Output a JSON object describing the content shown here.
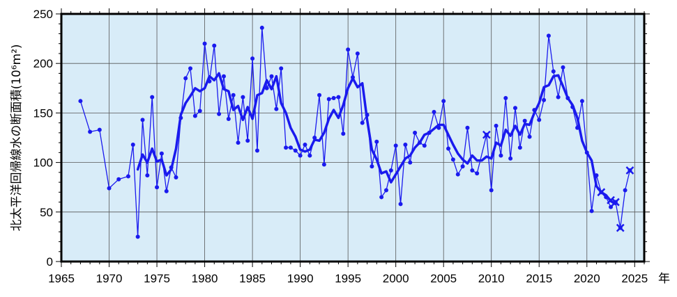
{
  "chart_data": {
    "type": "line",
    "ylabel": "北太平洋回帰線水の断面積",
    "ylabel_unit": "(10⁶m²)",
    "xlabel_unit": "年",
    "xlim": [
      1965,
      2026
    ],
    "ylim": [
      0,
      250
    ],
    "x_ticks": [
      1965,
      1970,
      1975,
      1980,
      1985,
      1990,
      1995,
      2000,
      2005,
      2010,
      2015,
      2020,
      2025
    ],
    "y_ticks": [
      0,
      50,
      100,
      150,
      200,
      250
    ],
    "grid": true,
    "background_color": "#d8ecf8",
    "line_color": "#1a1aee",
    "series": [
      {
        "style": "thin-line-with-dots",
        "points": [
          [
            1967.0,
            162
          ],
          [
            1968.0,
            131
          ],
          [
            1969.0,
            133
          ],
          [
            1970.0,
            74
          ],
          [
            1971.0,
            83
          ],
          [
            1972.0,
            86
          ],
          [
            1972.5,
            118
          ],
          [
            1973.0,
            25
          ],
          [
            1973.5,
            143
          ],
          [
            1974.0,
            87
          ],
          [
            1974.5,
            166
          ],
          [
            1975.0,
            75
          ],
          [
            1975.5,
            109
          ],
          [
            1976.0,
            71
          ],
          [
            1976.5,
            95
          ],
          [
            1977.0,
            85
          ],
          [
            1977.5,
            145
          ],
          [
            1978.0,
            185
          ],
          [
            1978.5,
            195
          ],
          [
            1979.0,
            147
          ],
          [
            1979.5,
            152
          ],
          [
            1980.0,
            220
          ],
          [
            1980.5,
            182
          ],
          [
            1981.0,
            218
          ],
          [
            1981.5,
            149
          ],
          [
            1982.0,
            187
          ],
          [
            1982.5,
            144
          ],
          [
            1983.0,
            168
          ],
          [
            1983.5,
            120
          ],
          [
            1984.0,
            166
          ],
          [
            1984.5,
            122
          ],
          [
            1985.0,
            205
          ],
          [
            1985.5,
            112
          ],
          [
            1986.0,
            236
          ],
          [
            1986.5,
            175
          ],
          [
            1987.0,
            187
          ],
          [
            1987.5,
            154
          ],
          [
            1988.0,
            195
          ],
          [
            1988.5,
            115
          ],
          [
            1989.0,
            115
          ],
          [
            1989.5,
            112
          ],
          [
            1990.0,
            107
          ],
          [
            1990.5,
            118
          ],
          [
            1991.0,
            107
          ],
          [
            1991.5,
            125
          ],
          [
            1992.0,
            168
          ],
          [
            1992.5,
            98
          ],
          [
            1993.0,
            164
          ],
          [
            1993.5,
            165
          ],
          [
            1994.0,
            166
          ],
          [
            1994.5,
            129
          ],
          [
            1995.0,
            214
          ],
          [
            1995.5,
            186
          ],
          [
            1996.0,
            210
          ],
          [
            1996.5,
            140
          ],
          [
            1997.0,
            148
          ],
          [
            1997.5,
            96
          ],
          [
            1998.0,
            121
          ],
          [
            1998.5,
            65
          ],
          [
            1999.0,
            72
          ],
          [
            1999.5,
            92
          ],
          [
            2000.0,
            117
          ],
          [
            2000.5,
            58
          ],
          [
            2001.0,
            118
          ],
          [
            2001.5,
            100
          ],
          [
            2002.0,
            130
          ],
          [
            2002.5,
            120
          ],
          [
            2003.0,
            117
          ],
          [
            2003.5,
            130
          ],
          [
            2004.0,
            151
          ],
          [
            2004.5,
            135
          ],
          [
            2005.0,
            162
          ],
          [
            2005.5,
            114
          ],
          [
            2006.0,
            103
          ],
          [
            2006.5,
            88
          ],
          [
            2007.0,
            96
          ],
          [
            2007.5,
            135
          ],
          [
            2008.0,
            92
          ],
          [
            2008.5,
            89
          ],
          [
            2009.5,
            128
          ],
          [
            2010.0,
            72
          ],
          [
            2010.5,
            137
          ],
          [
            2011.0,
            107
          ],
          [
            2011.5,
            165
          ],
          [
            2012.0,
            104
          ],
          [
            2012.5,
            155
          ],
          [
            2013.0,
            115
          ],
          [
            2013.5,
            142
          ],
          [
            2014.0,
            126
          ],
          [
            2014.5,
            153
          ],
          [
            2015.0,
            143
          ],
          [
            2015.5,
            163
          ],
          [
            2016.0,
            228
          ],
          [
            2016.5,
            192
          ],
          [
            2017.0,
            166
          ],
          [
            2017.5,
            196
          ],
          [
            2018.0,
            165
          ],
          [
            2018.5,
            156
          ],
          [
            2019.0,
            135
          ],
          [
            2019.5,
            162
          ],
          [
            2020.0,
            110
          ],
          [
            2020.5,
            51
          ],
          [
            2021.0,
            87
          ],
          [
            2021.5,
            70
          ],
          [
            2022.0,
            65
          ],
          [
            2022.5,
            55
          ],
          [
            2023.0,
            60
          ],
          [
            2023.5,
            34
          ],
          [
            2024.0,
            72
          ],
          [
            2024.5,
            92
          ]
        ]
      },
      {
        "style": "thick-smoothed-line",
        "points": [
          [
            1973.0,
            93
          ],
          [
            1973.5,
            108
          ],
          [
            1974.0,
            100
          ],
          [
            1974.5,
            114
          ],
          [
            1975.0,
            101
          ],
          [
            1975.5,
            103
          ],
          [
            1976.0,
            87
          ],
          [
            1976.5,
            93
          ],
          [
            1977.0,
            114
          ],
          [
            1977.5,
            148
          ],
          [
            1978.0,
            160
          ],
          [
            1978.5,
            167
          ],
          [
            1979.0,
            175
          ],
          [
            1979.5,
            172
          ],
          [
            1980.0,
            175
          ],
          [
            1980.5,
            187
          ],
          [
            1981.0,
            183
          ],
          [
            1981.5,
            190
          ],
          [
            1982.0,
            174
          ],
          [
            1982.5,
            172
          ],
          [
            1983.0,
            153
          ],
          [
            1983.5,
            157
          ],
          [
            1984.0,
            143
          ],
          [
            1984.5,
            156
          ],
          [
            1985.0,
            144
          ],
          [
            1985.5,
            168
          ],
          [
            1986.0,
            170
          ],
          [
            1986.5,
            183
          ],
          [
            1987.0,
            174
          ],
          [
            1987.5,
            187
          ],
          [
            1988.0,
            160
          ],
          [
            1988.5,
            150
          ],
          [
            1989.0,
            135
          ],
          [
            1989.5,
            126
          ],
          [
            1990.0,
            113
          ],
          [
            1990.5,
            111
          ],
          [
            1991.0,
            113
          ],
          [
            1991.5,
            123
          ],
          [
            1992.0,
            122
          ],
          [
            1992.5,
            130
          ],
          [
            1993.0,
            144
          ],
          [
            1993.5,
            153
          ],
          [
            1994.0,
            145
          ],
          [
            1994.5,
            158
          ],
          [
            1995.0,
            175
          ],
          [
            1995.5,
            185
          ],
          [
            1996.0,
            176
          ],
          [
            1996.5,
            180
          ],
          [
            1997.0,
            143
          ],
          [
            1997.5,
            113
          ],
          [
            1998.0,
            103
          ],
          [
            1998.5,
            89
          ],
          [
            1999.0,
            91
          ],
          [
            1999.5,
            80
          ],
          [
            2000.0,
            88
          ],
          [
            2000.5,
            96
          ],
          [
            2001.0,
            104
          ],
          [
            2001.5,
            107
          ],
          [
            2002.0,
            115
          ],
          [
            2002.5,
            120
          ],
          [
            2003.0,
            128
          ],
          [
            2003.5,
            130
          ],
          [
            2004.0,
            134
          ],
          [
            2004.5,
            138
          ],
          [
            2005.0,
            138
          ],
          [
            2005.5,
            128
          ],
          [
            2006.0,
            118
          ],
          [
            2006.5,
            109
          ],
          [
            2007.0,
            103
          ],
          [
            2007.5,
            99
          ],
          [
            2008.0,
            107
          ],
          [
            2008.5,
            102
          ],
          [
            2009.0,
            102
          ],
          [
            2009.5,
            106
          ],
          [
            2010.0,
            104
          ],
          [
            2010.5,
            120
          ],
          [
            2011.0,
            117
          ],
          [
            2011.5,
            133
          ],
          [
            2012.0,
            127
          ],
          [
            2012.5,
            137
          ],
          [
            2013.0,
            128
          ],
          [
            2013.5,
            139
          ],
          [
            2014.0,
            138
          ],
          [
            2014.5,
            150
          ],
          [
            2015.0,
            160
          ],
          [
            2015.5,
            176
          ],
          [
            2016.0,
            178
          ],
          [
            2016.5,
            187
          ],
          [
            2017.0,
            188
          ],
          [
            2017.5,
            177
          ],
          [
            2018.0,
            165
          ],
          [
            2018.5,
            158
          ],
          [
            2019.0,
            145
          ],
          [
            2019.5,
            122
          ],
          [
            2020.0,
            110
          ],
          [
            2020.5,
            102
          ],
          [
            2021.0,
            76
          ],
          [
            2021.5,
            70
          ],
          [
            2022.0,
            67
          ],
          [
            2022.5,
            61
          ],
          [
            2023.0,
            58
          ]
        ]
      }
    ],
    "cross_markers": [
      [
        2009.5,
        128
      ],
      [
        2021.5,
        70
      ],
      [
        2022.5,
        62
      ],
      [
        2023.0,
        60
      ],
      [
        2023.5,
        34
      ],
      [
        2024.5,
        92
      ]
    ]
  }
}
